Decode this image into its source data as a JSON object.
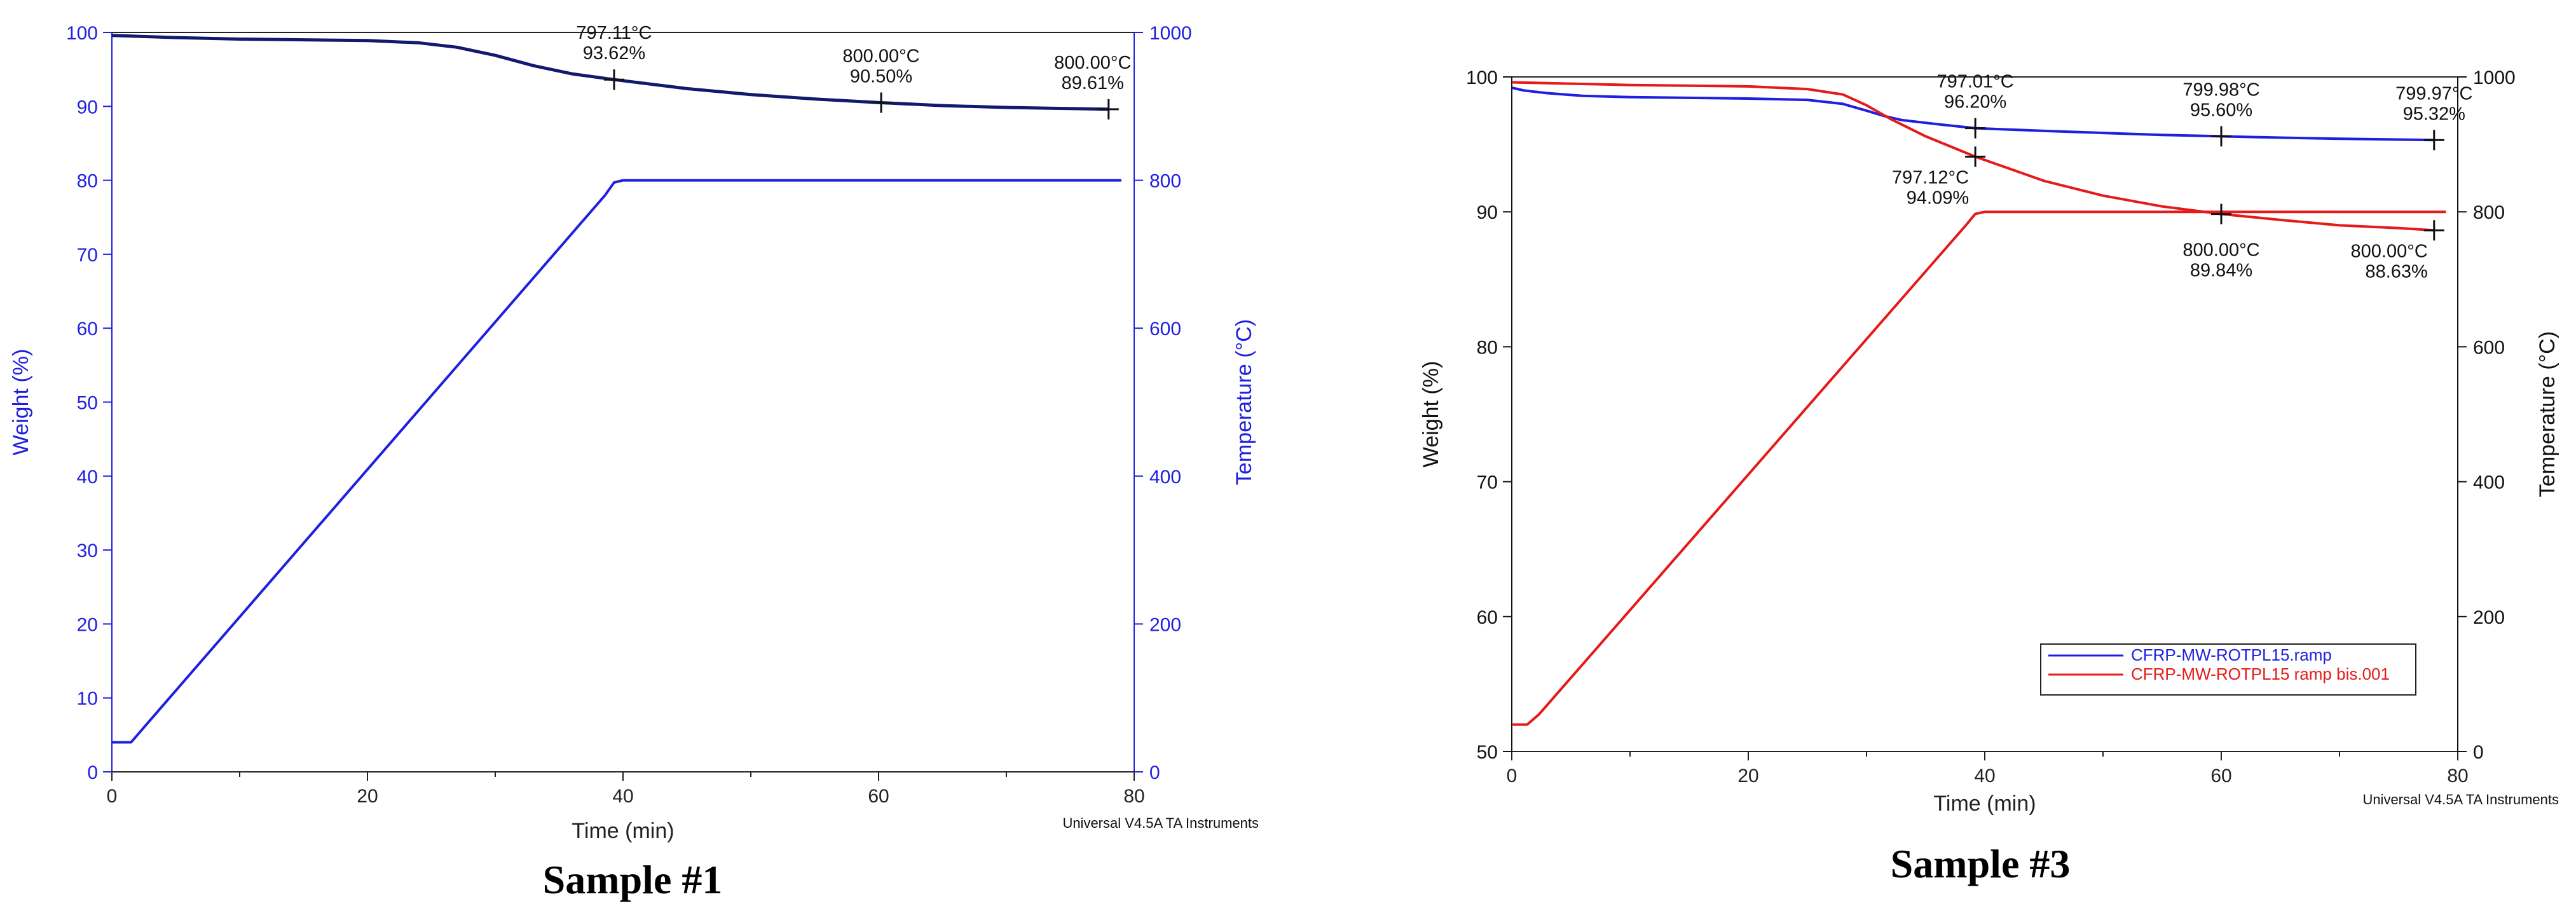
{
  "colors": {
    "blue": "#1f1fe0",
    "navy": "#111a6e",
    "red": "#e51a1a",
    "dark_text": "#111111"
  },
  "chart_data": [
    {
      "type": "line",
      "caption": "Sample #1",
      "footer": "Universal V4.5A TA Instruments",
      "xlabel": "Time (min)",
      "ylabel": "Weight (%)",
      "y2label": "Temperature (°C)",
      "xlim": [
        0,
        80
      ],
      "ylim": [
        0,
        100
      ],
      "y2lim": [
        0,
        1000
      ],
      "xticks": [
        "0",
        "20",
        "40",
        "60",
        "80"
      ],
      "yticks": [
        "0",
        "10",
        "20",
        "30",
        "40",
        "50",
        "60",
        "70",
        "80",
        "90",
        "100"
      ],
      "y2ticks": [
        "0",
        "200",
        "400",
        "600",
        "800",
        "1000"
      ],
      "grid": false,
      "series": [
        {
          "axis": "y",
          "color": "#111a6e",
          "x": [
            0,
            5,
            10,
            15,
            20,
            24,
            27,
            30,
            33,
            36,
            39.3,
            45,
            50,
            55,
            60.2,
            65,
            70,
            75,
            78
          ],
          "y": [
            99.6,
            99.3,
            99.1,
            99.0,
            98.9,
            98.6,
            98.0,
            96.9,
            95.5,
            94.4,
            93.62,
            92.4,
            91.6,
            91.0,
            90.5,
            90.1,
            89.85,
            89.7,
            89.61
          ]
        },
        {
          "axis": "y2",
          "color": "#1f1fe0",
          "x": [
            0,
            1.5,
            2.5,
            38.6,
            39.3,
            40,
            79
          ],
          "y": [
            40,
            40,
            60,
            780,
            797,
            800,
            800
          ]
        }
      ],
      "annotations": [
        {
          "x": 39.3,
          "y": 93.62,
          "lines": [
            "797.11°C",
            "93.62%"
          ]
        },
        {
          "x": 60.2,
          "y": 90.5,
          "lines": [
            "800.00°C",
            "90.50%"
          ]
        },
        {
          "x": 78,
          "y": 89.61,
          "lines": [
            "800.00°C",
            "89.61%"
          ]
        }
      ]
    },
    {
      "type": "line",
      "caption": "Sample #3",
      "footer": "Universal V4.5A TA Instruments",
      "xlabel": "Time (min)",
      "ylabel": "Weight (%)",
      "y2label": "Temperature (°C)",
      "xlim": [
        0,
        80
      ],
      "ylim": [
        50,
        100
      ],
      "y2lim": [
        0,
        1000
      ],
      "xticks": [
        "0",
        "20",
        "40",
        "60",
        "80"
      ],
      "yticks": [
        "50",
        "60",
        "70",
        "80",
        "90",
        "100"
      ],
      "y2ticks": [
        "0",
        "200",
        "400",
        "600",
        "800",
        "1000"
      ],
      "grid": false,
      "legend": {
        "placement": "bottom-right",
        "entries": [
          {
            "label": "CFRP-MW-ROTPL15.ramp",
            "color": "#1f1fe0"
          },
          {
            "label": "CFRP-MW-ROTPL15 ramp bis.001",
            "color": "#e51a1a"
          }
        ]
      },
      "series": [
        {
          "axis": "y",
          "color": "#1f1fe0",
          "x": [
            0,
            1,
            3,
            6,
            10,
            15,
            20,
            25,
            28,
            30,
            31.5,
            33,
            36,
            39.2,
            45,
            50,
            55,
            60,
            65,
            70,
            75,
            78
          ],
          "y": [
            99.2,
            99.0,
            98.8,
            98.6,
            98.5,
            98.45,
            98.4,
            98.3,
            98.0,
            97.5,
            97.1,
            96.8,
            96.5,
            96.2,
            96.0,
            95.85,
            95.7,
            95.6,
            95.5,
            95.42,
            95.36,
            95.32
          ]
        },
        {
          "axis": "y",
          "color": "#e51a1a",
          "x": [
            0,
            5,
            10,
            15,
            20,
            25,
            28,
            30,
            32,
            35,
            39.2,
            45,
            50,
            55,
            60,
            65,
            70,
            75,
            78
          ],
          "y": [
            99.6,
            99.5,
            99.4,
            99.35,
            99.3,
            99.1,
            98.7,
            97.9,
            96.9,
            95.6,
            94.09,
            92.3,
            91.2,
            90.4,
            89.84,
            89.4,
            89.0,
            88.8,
            88.63
          ]
        },
        {
          "axis": "y2",
          "color": "#e51a1a",
          "x": [
            0,
            1.3,
            2.3,
            38.4,
            39.2,
            40,
            79
          ],
          "y": [
            40,
            40,
            55,
            780,
            797,
            800,
            800
          ]
        }
      ],
      "annotations": [
        {
          "x": 39.2,
          "y": 96.2,
          "lines": [
            "797.01°C",
            "96.20%"
          ],
          "pos": "above"
        },
        {
          "x": 39.2,
          "y": 94.09,
          "lines": [
            "797.12°C",
            "94.09%"
          ],
          "pos": "below-left"
        },
        {
          "x": 60,
          "y": 95.6,
          "lines": [
            "799.98°C",
            "95.60%"
          ],
          "pos": "above"
        },
        {
          "x": 60,
          "y": 89.84,
          "lines": [
            "800.00°C",
            "89.84%"
          ],
          "pos": "below"
        },
        {
          "x": 78,
          "y": 95.32,
          "lines": [
            "799.97°C",
            "95.32%"
          ],
          "pos": "above"
        },
        {
          "x": 78,
          "y": 88.63,
          "lines": [
            "800.00°C",
            "88.63%"
          ],
          "pos": "below-left"
        }
      ]
    }
  ]
}
